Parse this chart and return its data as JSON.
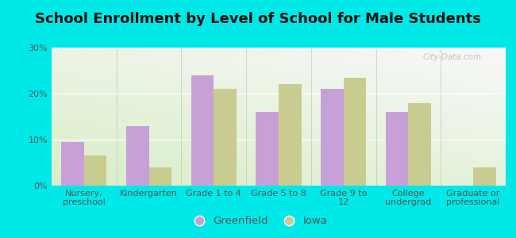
{
  "title": "School Enrollment by Level of School for Male Students",
  "categories": [
    "Nursery,\npreschool",
    "Kindergarten",
    "Grade 1 to 4",
    "Grade 5 to 8",
    "Grade 9 to\n12",
    "College\nundergrad",
    "Graduate or\nprofessional"
  ],
  "greenfield_values": [
    9.5,
    13.0,
    24.0,
    16.0,
    21.0,
    16.0,
    0.0
  ],
  "iowa_values": [
    6.5,
    4.0,
    21.0,
    22.0,
    23.5,
    18.0,
    4.0
  ],
  "greenfield_color": "#c8a0d8",
  "iowa_color": "#c8cc90",
  "background_color": "#00e8e8",
  "plot_bg_top_right": "#f8f8f8",
  "plot_bg_bottom_left": "#d8eec8",
  "ylim": [
    0,
    30
  ],
  "yticks": [
    0,
    10,
    20,
    30
  ],
  "ytick_labels": [
    "0%",
    "10%",
    "20%",
    "30%"
  ],
  "bar_width": 0.35,
  "legend_labels": [
    "Greenfield",
    "Iowa"
  ],
  "title_fontsize": 13,
  "tick_fontsize": 8,
  "legend_fontsize": 9.5,
  "watermark": "City-Data.com"
}
